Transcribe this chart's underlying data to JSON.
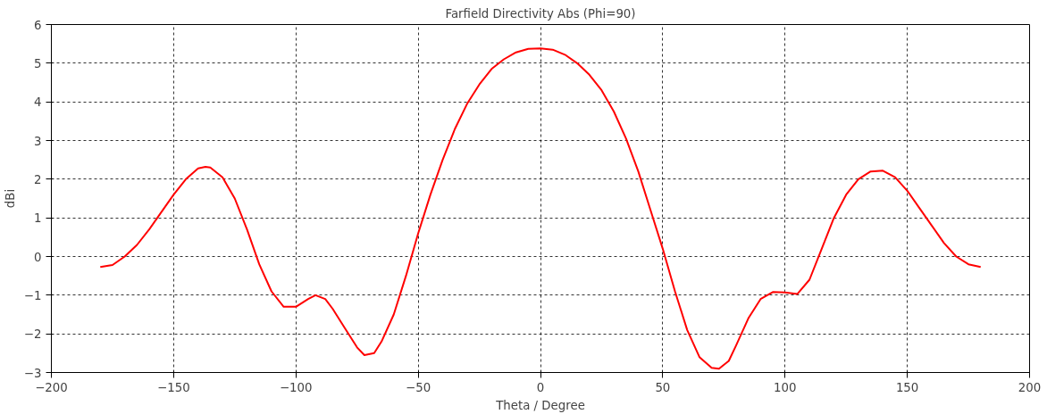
{
  "chart_data": {
    "type": "line",
    "title": "Farfield Directivity Abs (Phi=90)",
    "xlabel": "Theta / Degree",
    "ylabel": "dBi",
    "xlim": [
      -200,
      200
    ],
    "xticks": [
      -200,
      -150,
      -100,
      -50,
      0,
      50,
      100,
      150,
      200
    ],
    "ylim": [
      -3,
      6
    ],
    "yticks": [
      -3,
      -2,
      -1,
      0,
      1,
      2,
      3,
      4,
      5,
      6
    ],
    "grid": true,
    "marker": "none",
    "line_style": "solid",
    "series": [
      {
        "color": "#ff0000",
        "x": [
          -180,
          -175,
          -170,
          -165,
          -160,
          -155,
          -150,
          -145,
          -140,
          -137,
          -135,
          -130,
          -125,
          -120,
          -115,
          -110,
          -105,
          -100,
          -95,
          -92,
          -88,
          -85,
          -80,
          -75,
          -72,
          -68,
          -65,
          -60,
          -55,
          -50,
          -45,
          -40,
          -35,
          -30,
          -25,
          -20,
          -15,
          -10,
          -5,
          0,
          5,
          10,
          15,
          20,
          25,
          30,
          35,
          40,
          45,
          50,
          55,
          60,
          65,
          70,
          73,
          77,
          80,
          85,
          90,
          95,
          100,
          105,
          110,
          115,
          120,
          125,
          130,
          135,
          140,
          145,
          150,
          155,
          160,
          165,
          170,
          175,
          180
        ],
        "values": [
          -0.27,
          -0.22,
          0.0,
          0.3,
          0.7,
          1.15,
          1.6,
          2.0,
          2.28,
          2.32,
          2.3,
          2.05,
          1.5,
          0.7,
          -0.2,
          -0.9,
          -1.3,
          -1.3,
          -1.1,
          -1.0,
          -1.1,
          -1.35,
          -1.85,
          -2.35,
          -2.55,
          -2.5,
          -2.2,
          -1.5,
          -0.5,
          0.6,
          1.6,
          2.5,
          3.3,
          3.95,
          4.45,
          4.85,
          5.1,
          5.28,
          5.37,
          5.38,
          5.35,
          5.22,
          5.0,
          4.7,
          4.3,
          3.75,
          3.05,
          2.2,
          1.2,
          0.2,
          -0.9,
          -1.9,
          -2.6,
          -2.88,
          -2.9,
          -2.7,
          -2.3,
          -1.6,
          -1.1,
          -0.92,
          -0.93,
          -0.97,
          -0.6,
          0.2,
          1.0,
          1.6,
          2.0,
          2.2,
          2.22,
          2.05,
          1.7,
          1.25,
          0.8,
          0.35,
          0.0,
          -0.2,
          -0.27
        ]
      }
    ]
  }
}
